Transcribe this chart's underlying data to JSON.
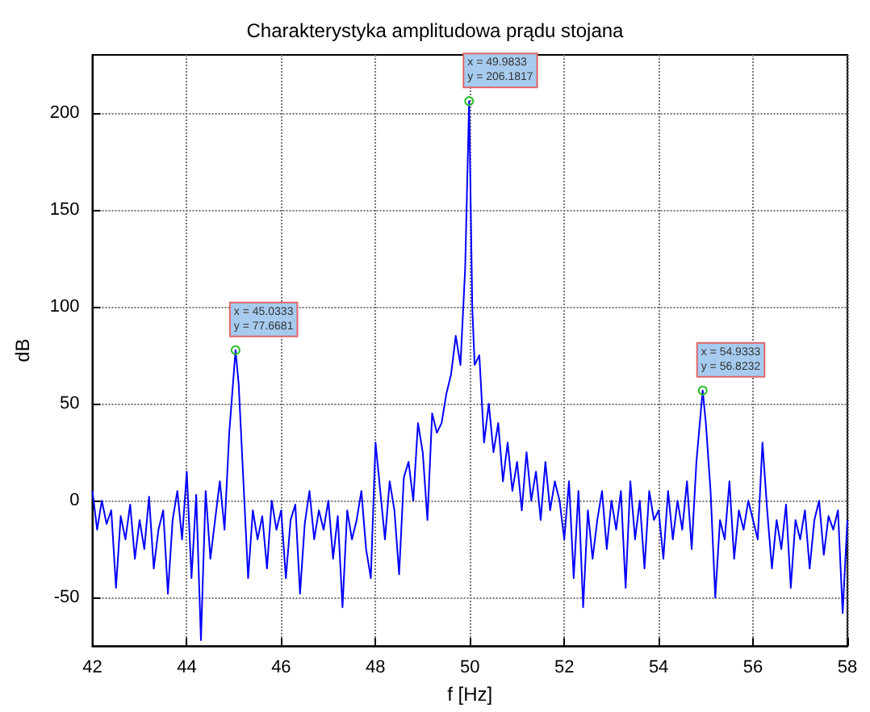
{
  "chart_data": {
    "type": "line",
    "title": "Charakterystyka amplitudowa prądu stojana",
    "xlabel": "f [Hz]",
    "ylabel": "dB",
    "xlim": [
      42,
      58
    ],
    "xticks": [
      42,
      44,
      46,
      48,
      50,
      52,
      54,
      56,
      58
    ],
    "ylim": [
      -75,
      230
    ],
    "yticks": [
      -50,
      0,
      50,
      100,
      150,
      200
    ],
    "grid": true,
    "marker": "none",
    "line_style": "solid",
    "annotations": [
      {
        "text": "x = 45.0333\ny = 77.6681",
        "x": 45.0333,
        "y": 77.6681
      },
      {
        "text": "x = 49.9833\ny = 206.1817",
        "x": 49.9833,
        "y": 206.1817
      },
      {
        "text": "x = 54.9333\ny = 56.8232",
        "x": 54.9333,
        "y": 56.8232
      }
    ],
    "series": [
      {
        "color": "#0000ff",
        "x": [
          42.0,
          42.1,
          42.2,
          42.3,
          42.4,
          42.5,
          42.6,
          42.7,
          42.8,
          42.9,
          43.0,
          43.1,
          43.2,
          43.3,
          43.4,
          43.5,
          43.6,
          43.7,
          43.8,
          43.9,
          44.0,
          44.1,
          44.2,
          44.3,
          44.4,
          44.5,
          44.6,
          44.7,
          44.8,
          44.9,
          45.0333,
          45.1,
          45.2,
          45.3,
          45.4,
          45.5,
          45.6,
          45.7,
          45.8,
          45.9,
          46.0,
          46.1,
          46.2,
          46.3,
          46.4,
          46.5,
          46.6,
          46.7,
          46.8,
          46.9,
          47.0,
          47.1,
          47.2,
          47.3,
          47.4,
          47.5,
          47.6,
          47.7,
          47.8,
          47.9,
          48.0,
          48.1,
          48.2,
          48.3,
          48.4,
          48.5,
          48.6,
          48.7,
          48.8,
          48.9,
          49.0,
          49.1,
          49.2,
          49.3,
          49.4,
          49.5,
          49.6,
          49.7,
          49.8,
          49.9,
          49.9833,
          50.05,
          50.1,
          50.2,
          50.3,
          50.4,
          50.5,
          50.6,
          50.7,
          50.8,
          50.9,
          51.0,
          51.1,
          51.2,
          51.3,
          51.4,
          51.5,
          51.6,
          51.7,
          51.8,
          51.9,
          52.0,
          52.1,
          52.2,
          52.3,
          52.4,
          52.5,
          52.6,
          52.7,
          52.8,
          52.9,
          53.0,
          53.1,
          53.2,
          53.3,
          53.4,
          53.5,
          53.6,
          53.7,
          53.8,
          53.9,
          54.0,
          54.1,
          54.2,
          54.3,
          54.4,
          54.5,
          54.6,
          54.7,
          54.8,
          54.9333,
          55.0,
          55.1,
          55.2,
          55.3,
          55.4,
          55.5,
          55.6,
          55.7,
          55.8,
          55.9,
          56.0,
          56.1,
          56.2,
          56.3,
          56.4,
          56.5,
          56.6,
          56.7,
          56.8,
          56.9,
          57.0,
          57.1,
          57.2,
          57.3,
          57.4,
          57.5,
          57.6,
          57.7,
          57.8,
          57.9,
          58.0
        ],
        "values": [
          5,
          -15,
          0,
          -12,
          -5,
          -45,
          -8,
          -20,
          -2,
          -30,
          -10,
          -25,
          2,
          -35,
          -15,
          -5,
          -48,
          -10,
          5,
          -20,
          15,
          -40,
          3,
          -72,
          5,
          -30,
          -10,
          10,
          -15,
          35,
          77.6681,
          60,
          10,
          -40,
          -5,
          -20,
          -8,
          -35,
          0,
          -15,
          -5,
          -40,
          -10,
          -2,
          -48,
          -12,
          5,
          -20,
          -5,
          -15,
          0,
          -30,
          -8,
          -55,
          -5,
          -20,
          -10,
          5,
          -25,
          -40,
          30,
          5,
          -20,
          10,
          -5,
          -38,
          12,
          20,
          0,
          40,
          25,
          -10,
          45,
          35,
          40,
          55,
          65,
          85,
          70,
          120,
          206.1817,
          100,
          70,
          75,
          30,
          50,
          25,
          40,
          10,
          30,
          5,
          20,
          -5,
          25,
          0,
          15,
          -10,
          20,
          -5,
          10,
          0,
          -20,
          10,
          -40,
          5,
          -55,
          -5,
          -30,
          -10,
          5,
          -25,
          0,
          -15,
          5,
          -45,
          10,
          -20,
          0,
          -35,
          5,
          -10,
          -5,
          -30,
          5,
          -20,
          0,
          -15,
          10,
          -25,
          20,
          56.8232,
          40,
          5,
          -50,
          -10,
          -20,
          10,
          -30,
          -5,
          -15,
          0,
          -10,
          -20,
          30,
          -5,
          -35,
          -10,
          -25,
          -2,
          -45,
          -10,
          -20,
          -5,
          -35,
          -10,
          0,
          -28,
          -8,
          -15,
          -5,
          -58,
          -10
        ]
      }
    ]
  }
}
